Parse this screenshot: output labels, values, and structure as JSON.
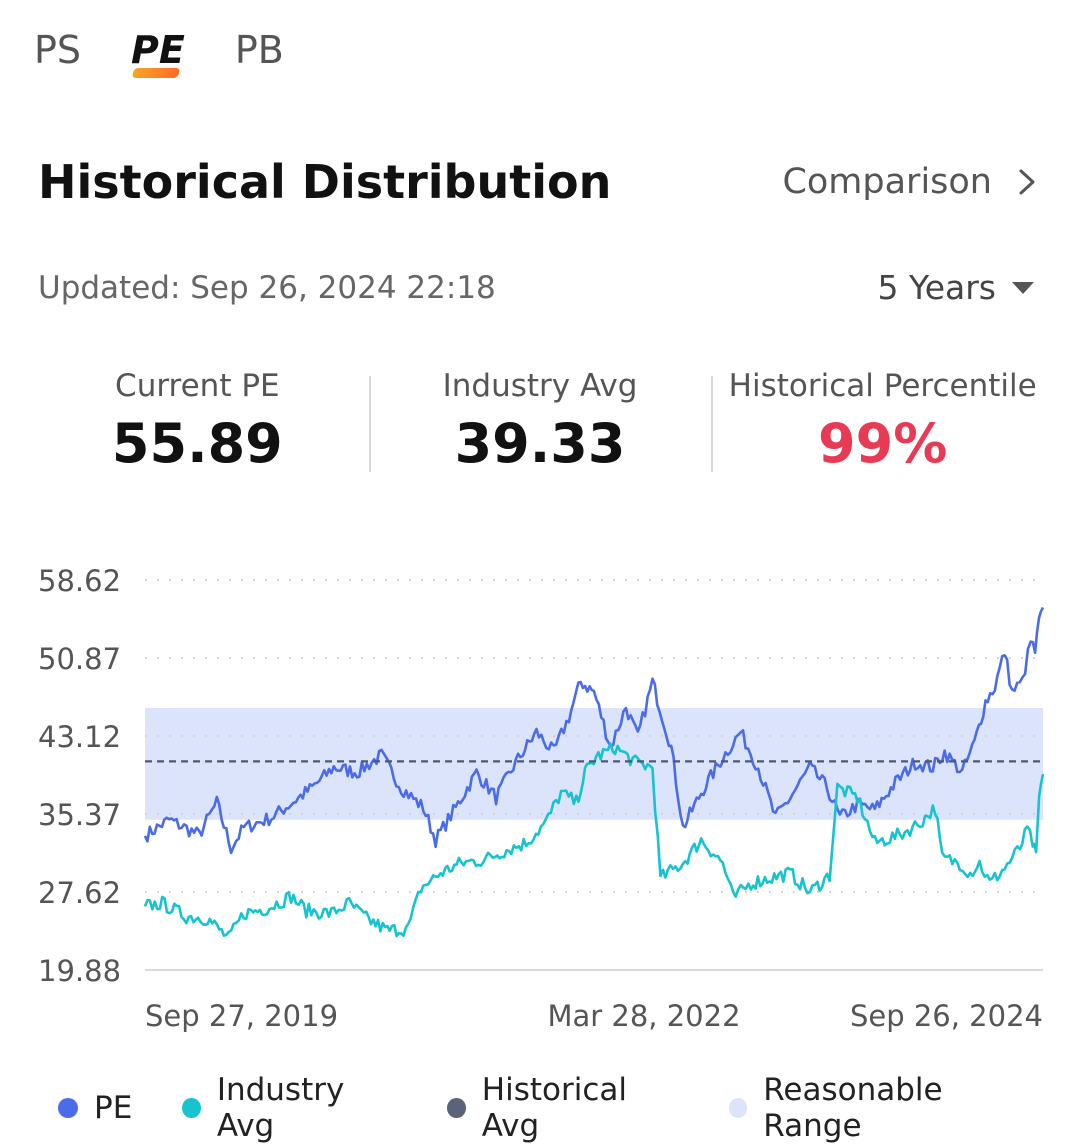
{
  "tabs": [
    {
      "label": "PS",
      "active": false
    },
    {
      "label": "PE",
      "active": true
    },
    {
      "label": "PB",
      "active": false
    }
  ],
  "header": {
    "title": "Historical Distribution",
    "comparison_label": "Comparison"
  },
  "updated": "Updated: Sep 26, 2024 22:18",
  "period": "5 Years",
  "stats": {
    "current_label": "Current PE",
    "current_value": "55.89",
    "industry_label": "Industry Avg",
    "industry_value": "39.33",
    "percentile_label": "Historical Percentile",
    "percentile_value": "99%"
  },
  "colors": {
    "pe": "#4a6ce8",
    "industry": "#17c3d1",
    "hist_avg": "#4d5877",
    "range": "#dbe4fb",
    "percentile": "#e83a55"
  },
  "legend": [
    {
      "label": "PE",
      "color": "#4a6ce8"
    },
    {
      "label": "Industry Avg",
      "color": "#17c3d1"
    },
    {
      "label": "Historical Avg",
      "color": "#5b6378"
    },
    {
      "label": "Reasonable Range",
      "color": "#dbe4fb"
    }
  ],
  "chart_data": {
    "type": "line",
    "y_ticks": [
      "58.62",
      "50.87",
      "43.12",
      "35.37",
      "27.62",
      "19.88"
    ],
    "ylim": [
      19.88,
      58.62
    ],
    "x_ticks": [
      "Sep 27, 2019",
      "Mar 28, 2022",
      "Sep 26, 2024"
    ],
    "historical_avg": 40.6,
    "reasonable_range": [
      34.8,
      45.9
    ],
    "series": [
      {
        "name": "PE",
        "key": "pe",
        "points": [
          [
            "2019-09-27",
            33.2
          ],
          [
            "2019-11-15",
            34.8
          ],
          [
            "2020-01-15",
            33.3
          ],
          [
            "2020-02-20",
            36.5
          ],
          [
            "2020-03-20",
            32.0
          ],
          [
            "2020-04-15",
            34.0
          ],
          [
            "2020-06-10",
            35.0
          ],
          [
            "2020-07-25",
            36.6
          ],
          [
            "2020-09-01",
            38.0
          ],
          [
            "2020-10-15",
            40.0
          ],
          [
            "2020-12-01",
            39.5
          ],
          [
            "2021-01-20",
            41.2
          ],
          [
            "2021-03-01",
            38.0
          ],
          [
            "2021-04-15",
            36.0
          ],
          [
            "2021-05-10",
            32.8
          ],
          [
            "2021-06-20",
            36.0
          ],
          [
            "2021-08-01",
            39.5
          ],
          [
            "2021-09-10",
            37.0
          ],
          [
            "2021-10-20",
            40.5
          ],
          [
            "2021-12-01",
            43.5
          ],
          [
            "2022-01-05",
            41.5
          ],
          [
            "2022-02-05",
            45.0
          ],
          [
            "2022-03-01",
            48.5
          ],
          [
            "2022-03-28",
            47.5
          ],
          [
            "2022-05-01",
            42.0
          ],
          [
            "2022-06-01",
            46.0
          ],
          [
            "2022-06-25",
            43.0
          ],
          [
            "2022-07-25",
            48.5
          ],
          [
            "2022-09-01",
            42.0
          ],
          [
            "2022-09-25",
            34.0
          ],
          [
            "2022-11-01",
            37.5
          ],
          [
            "2022-12-15",
            41.0
          ],
          [
            "2023-01-20",
            43.5
          ],
          [
            "2023-02-25",
            40.0
          ],
          [
            "2023-04-01",
            35.0
          ],
          [
            "2023-05-01",
            37.0
          ],
          [
            "2023-06-10",
            40.0
          ],
          [
            "2023-07-15",
            38.0
          ],
          [
            "2023-08-10",
            35.0
          ],
          [
            "2023-09-15",
            36.3
          ],
          [
            "2023-10-20",
            35.8
          ],
          [
            "2023-12-01",
            38.5
          ],
          [
            "2024-01-10",
            40.5
          ],
          [
            "2024-02-15",
            40.0
          ],
          [
            "2024-03-10",
            41.5
          ],
          [
            "2024-04-15",
            39.5
          ],
          [
            "2024-05-10",
            42.5
          ],
          [
            "2024-06-01",
            46.5
          ],
          [
            "2024-06-20",
            48.0
          ],
          [
            "2024-07-10",
            51.5
          ],
          [
            "2024-07-25",
            47.5
          ],
          [
            "2024-08-15",
            48.5
          ],
          [
            "2024-09-01",
            52.5
          ],
          [
            "2024-09-10",
            51.5
          ],
          [
            "2024-09-18",
            54.5
          ],
          [
            "2024-09-26",
            55.89
          ]
        ]
      },
      {
        "name": "Industry Avg",
        "key": "industry",
        "points": [
          [
            "2019-09-27",
            26.2
          ],
          [
            "2019-11-01",
            26.5
          ],
          [
            "2019-12-20",
            25.2
          ],
          [
            "2020-02-01",
            25.0
          ],
          [
            "2020-03-15",
            23.0
          ],
          [
            "2020-04-15",
            25.5
          ],
          [
            "2020-06-01",
            26.0
          ],
          [
            "2020-07-20",
            27.2
          ],
          [
            "2020-08-20",
            25.8
          ],
          [
            "2020-10-10",
            25.5
          ],
          [
            "2020-11-15",
            26.5
          ],
          [
            "2020-12-20",
            25.0
          ],
          [
            "2021-02-01",
            23.8
          ],
          [
            "2021-03-15",
            24.0
          ],
          [
            "2021-04-10",
            28.0
          ],
          [
            "2021-05-20",
            29.5
          ],
          [
            "2021-07-01",
            30.5
          ],
          [
            "2021-08-15",
            30.8
          ],
          [
            "2021-10-01",
            31.8
          ],
          [
            "2021-11-10",
            32.5
          ],
          [
            "2021-12-20",
            34.5
          ],
          [
            "2022-01-20",
            37.5
          ],
          [
            "2022-02-20",
            36.5
          ],
          [
            "2022-03-10",
            39.5
          ],
          [
            "2022-04-01",
            41.0
          ],
          [
            "2022-05-10",
            42.0
          ],
          [
            "2022-06-20",
            40.5
          ],
          [
            "2022-07-25",
            40.0
          ],
          [
            "2022-08-10",
            29.0
          ],
          [
            "2022-09-25",
            30.5
          ],
          [
            "2022-11-01",
            32.8
          ],
          [
            "2022-12-15",
            30.5
          ],
          [
            "2023-01-05",
            27.0
          ],
          [
            "2023-02-10",
            28.5
          ],
          [
            "2023-03-20",
            29.0
          ],
          [
            "2023-05-01",
            29.5
          ],
          [
            "2023-06-10",
            27.6
          ],
          [
            "2023-07-20",
            29.3
          ],
          [
            "2023-08-05",
            38.0
          ],
          [
            "2023-09-15",
            37.0
          ],
          [
            "2023-10-20",
            32.5
          ],
          [
            "2023-12-10",
            33.3
          ],
          [
            "2024-01-20",
            34.5
          ],
          [
            "2024-02-20",
            36.0
          ],
          [
            "2024-03-05",
            31.0
          ],
          [
            "2024-04-10",
            30.5
          ],
          [
            "2024-05-01",
            29.5
          ],
          [
            "2024-05-20",
            30.5
          ],
          [
            "2024-06-10",
            28.5
          ],
          [
            "2024-07-10",
            30.0
          ],
          [
            "2024-08-10",
            32.0
          ],
          [
            "2024-08-25",
            33.8
          ],
          [
            "2024-09-05",
            32.5
          ],
          [
            "2024-09-12",
            31.0
          ],
          [
            "2024-09-18",
            37.0
          ],
          [
            "2024-09-26",
            39.33
          ]
        ]
      }
    ]
  }
}
